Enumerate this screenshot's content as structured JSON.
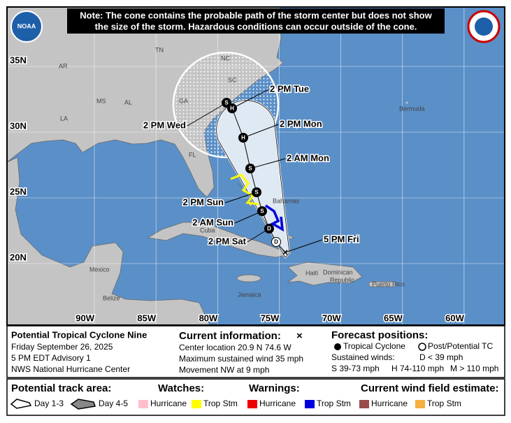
{
  "note": [
    "Note: The cone contains the probable path of the storm center but does not show",
    "the size of the storm. Hazardous conditions can occur outside of the cone."
  ],
  "logo": "NOAA",
  "lat_labels": [
    {
      "value": 35,
      "label": "35N"
    },
    {
      "value": 30,
      "label": "30N"
    },
    {
      "value": 25,
      "label": "25N"
    },
    {
      "value": 20,
      "label": "20N"
    }
  ],
  "lon_labels": [
    {
      "value": 90,
      "label": "90W"
    },
    {
      "value": 85,
      "label": "85W"
    },
    {
      "value": 80,
      "label": "80W"
    },
    {
      "value": 75,
      "label": "75W"
    },
    {
      "value": 70,
      "label": "70W"
    },
    {
      "value": 65,
      "label": "65W"
    },
    {
      "value": 60,
      "label": "60W"
    }
  ],
  "places": [
    "TN",
    "NC",
    "AR",
    "SC",
    "MS",
    "AL",
    "GA",
    "LA",
    "FL",
    "Bermuda",
    "Bahamas",
    "Cuba",
    "Mexico",
    "Belize",
    "Jamaica",
    "Haiti",
    "Dominican",
    "Republic",
    "Puerto Rico"
  ],
  "track_labels": [
    "5 PM Fri",
    "2 PM Sat",
    "2 AM Sun",
    "2 PM Sun",
    "2 AM Mon",
    "2 PM Mon",
    "2 PM Tue",
    "2 PM Wed"
  ],
  "markers": [
    "D",
    "D",
    "S",
    "S",
    "S",
    "H",
    "H",
    "S"
  ],
  "info": {
    "title": "Potential Tropical Cyclone Nine",
    "date": "Friday September 26, 2025",
    "advisory": "5 PM EDT Advisory 1",
    "center": "NWS National Hurricane Center",
    "current_heading": "Current information:",
    "current_symbol": "×",
    "location": "Center location 20.9 N 74.6 W",
    "wind": "Maximum sustained wind 35 mph",
    "movement": "Movement NW at 9 mph",
    "forecast_heading": "Forecast positions:",
    "tropical": "Tropical Cyclone",
    "post": "Post/Potential TC",
    "sustained": "Sustained winds:",
    "d": "D < 39 mph",
    "s": "S 39-73 mph",
    "h": "H 74-110 mph",
    "m": "M > 110 mph"
  },
  "legend": {
    "track_heading": "Potential track area:",
    "day13": "Day 1-3",
    "day45": "Day 4-5",
    "watches": "Watches:",
    "watch_hur": "Hurricane",
    "watch_ts": "Trop Stm",
    "warnings": "Warnings:",
    "warn_hur": "Hurricane",
    "warn_ts": "Trop Stm",
    "wind_heading": "Current wind field estimate:",
    "wind_hur": "Hurricane",
    "wind_ts": "Trop Stm"
  }
}
